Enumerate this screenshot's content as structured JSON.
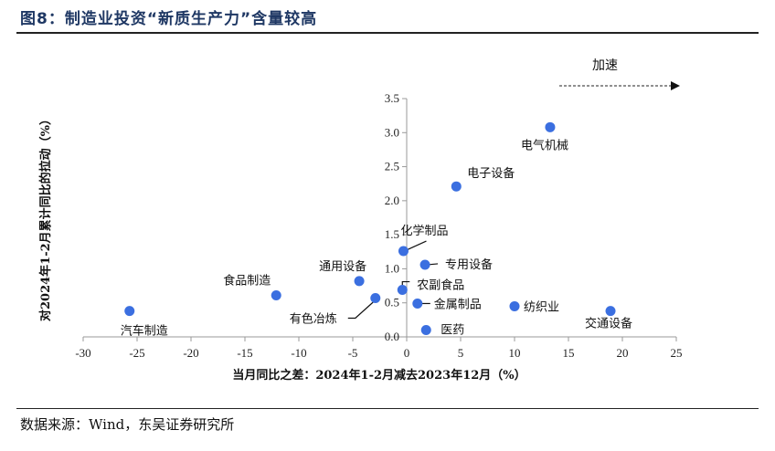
{
  "title": "图8：制造业投资“新质生产力”含量较高",
  "source": "数据来源：Wind，东吴证券研究所",
  "chart_data": {
    "type": "scatter",
    "xlabel": "当月同比之差：2024年1-2月减去2023年12月（%）",
    "ylabel": "对2024年1-2月累计同比的拉动（%）",
    "xlim": [
      -30,
      25
    ],
    "ylim": [
      0,
      3.5
    ],
    "xticks": [
      "-30",
      "-25",
      "-20",
      "-15",
      "-10",
      "-5",
      "0",
      "5",
      "10",
      "15",
      "20",
      "25"
    ],
    "yticks": [
      "0.0",
      "0.5",
      "1.0",
      "1.5",
      "2.0",
      "2.5",
      "3.0",
      "3.5"
    ],
    "annotation": "加速",
    "point_color": "#3b6fe0",
    "points": [
      {
        "name": "汽车制造",
        "x": -25.7,
        "y": 0.38
      },
      {
        "name": "食品制造",
        "x": -12.1,
        "y": 0.61
      },
      {
        "name": "通用设备",
        "x": -4.4,
        "y": 0.82
      },
      {
        "name": "有色冶炼",
        "x": -2.9,
        "y": 0.57
      },
      {
        "name": "农副食品",
        "x": -0.4,
        "y": 0.69
      },
      {
        "name": "化学制品",
        "x": -0.3,
        "y": 1.26
      },
      {
        "name": "专用设备",
        "x": 1.7,
        "y": 1.06
      },
      {
        "name": "金属制品",
        "x": 1.0,
        "y": 0.49
      },
      {
        "name": "医药",
        "x": 1.8,
        "y": 0.1
      },
      {
        "name": "纺织业",
        "x": 10.0,
        "y": 0.45
      },
      {
        "name": "交通设备",
        "x": 18.9,
        "y": 0.38
      },
      {
        "name": "电子设备",
        "x": 4.6,
        "y": 2.21
      },
      {
        "name": "电气机械",
        "x": 13.3,
        "y": 3.08
      }
    ]
  }
}
